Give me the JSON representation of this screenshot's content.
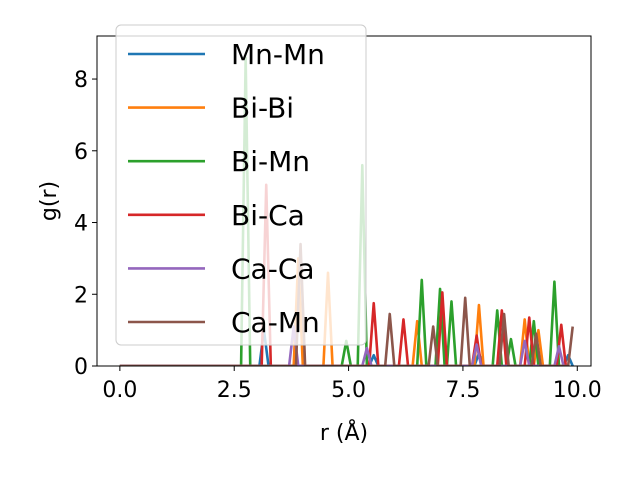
{
  "chart_data": {
    "type": "line",
    "title": "",
    "xlabel": "r (Å)",
    "ylabel": "g(r)",
    "xlim": [
      -0.5,
      10.3
    ],
    "ylim": [
      0,
      9.2
    ],
    "xticks": [
      0.0,
      2.5,
      5.0,
      7.5,
      10.0
    ],
    "xtick_labels": [
      "0.0",
      "2.5",
      "5.0",
      "7.5",
      "10.0"
    ],
    "yticks": [
      0,
      2,
      4,
      6,
      8
    ],
    "ytick_labels": [
      "0",
      "2",
      "4",
      "6",
      "8"
    ],
    "grid": false,
    "legend_position": "upper-left",
    "series": [
      {
        "name": "Mn-Mn",
        "color": "#1f77b4",
        "x": [
          0,
          3.05,
          3.15,
          3.25,
          5.45,
          5.55,
          5.65,
          7.75,
          7.85,
          7.95,
          9.7,
          9.8,
          9.9
        ],
        "y": [
          0,
          0,
          1.0,
          0,
          0,
          0.3,
          0,
          0,
          0.35,
          0,
          0,
          0.3,
          0
        ]
      },
      {
        "name": "Bi-Bi",
        "color": "#ff7f0e",
        "x": [
          0,
          3.8,
          3.9,
          4.0,
          4.45,
          4.55,
          4.65,
          6.4,
          6.5,
          6.6,
          7.75,
          7.85,
          7.95,
          8.75,
          8.85,
          8.95,
          9.05,
          9.15,
          9.25,
          9.8
        ],
        "y": [
          0,
          0,
          3.0,
          0,
          0,
          2.6,
          0,
          0,
          1.25,
          0,
          0,
          1.7,
          0,
          0,
          1.3,
          0,
          0,
          1.0,
          0,
          0
        ]
      },
      {
        "name": "Bi-Mn",
        "color": "#2ca02c",
        "x": [
          0,
          2.65,
          2.75,
          2.85,
          4.85,
          4.95,
          5.05,
          5.2,
          5.3,
          5.4,
          6.5,
          6.6,
          6.7,
          6.9,
          7.0,
          7.1,
          7.15,
          7.25,
          7.35,
          8.15,
          8.25,
          8.35,
          8.45,
          8.55,
          8.65,
          8.95,
          9.05,
          9.15,
          9.4,
          9.5,
          9.6,
          9.8
        ],
        "y": [
          0,
          0,
          8.6,
          0,
          0,
          0.7,
          0,
          0,
          5.6,
          0,
          0,
          2.4,
          0,
          0,
          2.15,
          0,
          0,
          1.8,
          0,
          0,
          1.55,
          0,
          0,
          0.75,
          0,
          0,
          1.25,
          0,
          0,
          2.35,
          0,
          0
        ]
      },
      {
        "name": "Bi-Ca",
        "color": "#d62728",
        "x": [
          0,
          3.1,
          3.2,
          3.3,
          5.45,
          5.55,
          5.65,
          6.1,
          6.2,
          6.3,
          6.95,
          7.05,
          7.15,
          7.7,
          7.8,
          7.9,
          8.25,
          8.35,
          8.45,
          8.85,
          8.95,
          9.05,
          9.55,
          9.65,
          9.75,
          9.8
        ],
        "y": [
          0,
          0,
          5.05,
          0,
          0,
          1.75,
          0,
          0,
          1.3,
          0,
          0,
          2.05,
          0,
          0,
          0.85,
          0,
          0,
          1.55,
          0,
          0,
          1.35,
          0,
          0,
          1.15,
          0,
          0
        ]
      },
      {
        "name": "Ca-Ca",
        "color": "#9467bd",
        "x": [
          0,
          3.7,
          3.8,
          3.9,
          5.3,
          5.4,
          5.5,
          7.7,
          7.8,
          7.9,
          8.75,
          8.85,
          8.95,
          9.5,
          9.6,
          9.7,
          9.8
        ],
        "y": [
          0,
          0,
          1.1,
          0,
          0,
          0.5,
          0,
          0,
          0.6,
          0,
          0,
          0.7,
          0,
          0,
          0.55,
          0,
          0
        ]
      },
      {
        "name": "Ca-Mn",
        "color": "#8c564b",
        "x": [
          0,
          3.85,
          3.95,
          4.05,
          5.8,
          5.9,
          6.0,
          6.75,
          6.85,
          6.95,
          7.45,
          7.55,
          7.65,
          8.3,
          8.4,
          8.5,
          9.0,
          9.1,
          9.2,
          9.8,
          9.9
        ],
        "y": [
          0,
          0,
          3.4,
          0,
          0,
          1.45,
          0,
          0,
          1.1,
          0,
          0,
          1.9,
          0,
          0,
          1.45,
          0,
          0,
          0.9,
          0,
          0,
          1.1
        ]
      }
    ]
  }
}
